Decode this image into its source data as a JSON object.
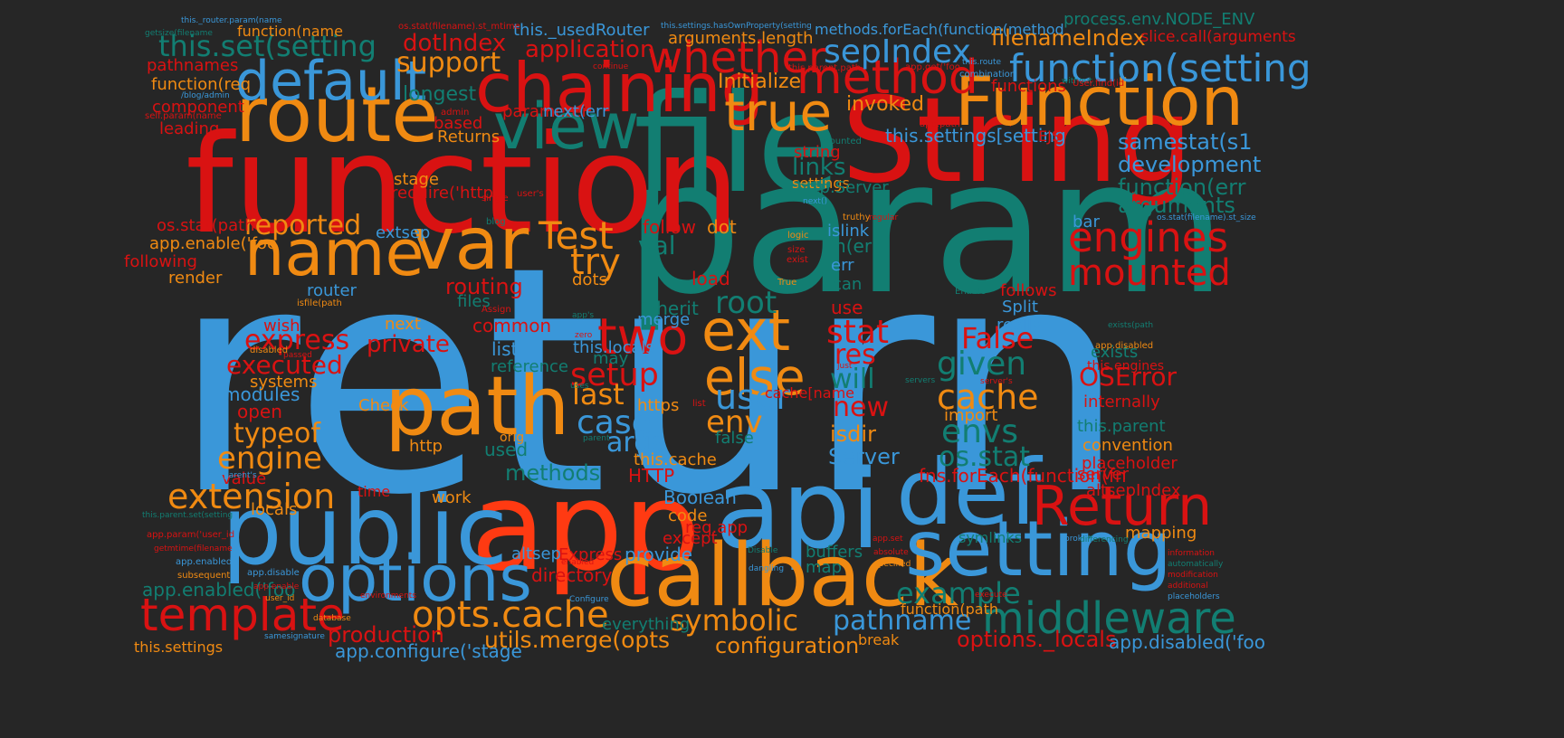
{
  "palette": {
    "background": "#262626",
    "blue": "#3a97d9",
    "orange": "#f08a12",
    "red": "#d91212",
    "vermilion": "#ff3a12",
    "teal": "#127e72"
  },
  "words": [
    {
      "text": "return",
      "color": "blue"
    },
    {
      "text": "param",
      "color": "teal"
    },
    {
      "text": "function",
      "color": "red"
    },
    {
      "text": "file",
      "color": "teal"
    },
    {
      "text": "String",
      "color": "red"
    },
    {
      "text": "app",
      "color": "vermilion"
    },
    {
      "text": "api",
      "color": "blue"
    },
    {
      "text": "public",
      "color": "blue"
    },
    {
      "text": "route",
      "color": "orange"
    },
    {
      "text": "def",
      "color": "blue"
    },
    {
      "text": "callback",
      "color": "orange"
    },
    {
      "text": "setting",
      "color": "blue"
    },
    {
      "text": "chaining",
      "color": "red"
    },
    {
      "text": "view",
      "color": "teal"
    },
    {
      "text": "var",
      "color": "orange"
    },
    {
      "text": "name",
      "color": "orange"
    },
    {
      "text": "path",
      "color": "orange"
    },
    {
      "text": "Function",
      "color": "orange"
    },
    {
      "text": "options",
      "color": "blue"
    },
    {
      "text": "default",
      "color": "blue"
    },
    {
      "text": "Return",
      "color": "red"
    },
    {
      "text": "template",
      "color": "red"
    },
    {
      "text": "middleware",
      "color": "teal"
    },
    {
      "text": "function(setting",
      "color": "blue"
    },
    {
      "text": "method",
      "color": "red"
    },
    {
      "text": "true",
      "color": "orange"
    },
    {
      "text": "ext",
      "color": "orange"
    },
    {
      "text": "whether",
      "color": "red"
    },
    {
      "text": "engines",
      "color": "red"
    },
    {
      "text": "opts.cache",
      "color": "orange"
    },
    {
      "text": "two",
      "color": "red"
    },
    {
      "text": "mounted",
      "color": "red"
    },
    {
      "text": "else",
      "color": "orange"
    },
    {
      "text": "extension",
      "color": "orange"
    },
    {
      "text": "sepIndex",
      "color": "blue"
    },
    {
      "text": "Test",
      "color": "orange"
    },
    {
      "text": "try",
      "color": "orange"
    },
    {
      "text": "symbolic",
      "color": "orange"
    },
    {
      "text": "cache",
      "color": "orange"
    },
    {
      "text": "example",
      "color": "teal"
    },
    {
      "text": "pathname",
      "color": "blue"
    },
    {
      "text": "reported",
      "color": "orange"
    },
    {
      "text": "setup",
      "color": "red"
    },
    {
      "text": "case",
      "color": "blue"
    },
    {
      "text": "user",
      "color": "blue"
    },
    {
      "text": "given",
      "color": "teal"
    },
    {
      "text": "envs",
      "color": "teal"
    },
    {
      "text": "root",
      "color": "teal"
    },
    {
      "text": "env",
      "color": "orange"
    },
    {
      "text": "val",
      "color": "teal"
    },
    {
      "text": "engine",
      "color": "orange"
    },
    {
      "text": "this.set(setting",
      "color": "teal"
    },
    {
      "text": "support",
      "color": "orange"
    },
    {
      "text": "dotIndex",
      "color": "red"
    },
    {
      "text": "application",
      "color": "red"
    },
    {
      "text": "filenameIndex",
      "color": "orange"
    },
    {
      "text": "utils.merge(opts",
      "color": "orange"
    },
    {
      "text": "configuration",
      "color": "orange"
    },
    {
      "text": "production",
      "color": "red"
    },
    {
      "text": "options._locals",
      "color": "red"
    },
    {
      "text": "app.configure('stage",
      "color": "blue"
    },
    {
      "text": "app.disabled('foo",
      "color": "blue"
    },
    {
      "text": "typeof",
      "color": "orange"
    },
    {
      "text": "last",
      "color": "orange"
    },
    {
      "text": "args",
      "color": "blue"
    },
    {
      "text": "executed",
      "color": "red"
    },
    {
      "text": "express",
      "color": "red"
    },
    {
      "text": "private",
      "color": "red"
    },
    {
      "text": "stat",
      "color": "red"
    },
    {
      "text": "res",
      "color": "red"
    },
    {
      "text": "will",
      "color": "teal"
    },
    {
      "text": "new",
      "color": "red"
    },
    {
      "text": "False",
      "color": "red"
    },
    {
      "text": "OSError",
      "color": "red"
    },
    {
      "text": "os.stat",
      "color": "teal"
    },
    {
      "text": "Server",
      "color": "blue"
    },
    {
      "text": "isdir",
      "color": "orange"
    },
    {
      "text": "samestat(s1",
      "color": "blue"
    },
    {
      "text": "development",
      "color": "blue"
    },
    {
      "text": "function(err",
      "color": "teal"
    },
    {
      "text": "arguments",
      "color": "teal"
    },
    {
      "text": "links",
      "color": "teal"
    },
    {
      "text": "settings",
      "color": "orange"
    },
    {
      "text": "invoked",
      "color": "orange"
    },
    {
      "text": "Initialize",
      "color": "orange"
    },
    {
      "text": "this.settings[setting",
      "color": "blue"
    },
    {
      "text": "this._usedRouter",
      "color": "blue"
    },
    {
      "text": "arguments.length",
      "color": "orange"
    },
    {
      "text": ".slice.call(arguments",
      "color": "red"
    },
    {
      "text": "methods.forEach(function(method",
      "color": "blue"
    },
    {
      "text": "process.env.NODE_ENV",
      "color": "teal"
    },
    {
      "text": "function(name",
      "color": "orange"
    },
    {
      "text": "pathnames",
      "color": "red"
    },
    {
      "text": "function(req",
      "color": "orange"
    },
    {
      "text": "component",
      "color": "red"
    },
    {
      "text": "leading",
      "color": "red"
    },
    {
      "text": "longest",
      "color": "teal"
    },
    {
      "text": "parameter",
      "color": "red"
    },
    {
      "text": "next(err",
      "color": "blue"
    },
    {
      "text": "Returns",
      "color": "orange"
    },
    {
      "text": "based",
      "color": "red"
    },
    {
      "text": "stage",
      "color": "orange"
    },
    {
      "text": "require('http",
      "color": "red"
    },
    {
      "text": "os.stat(path",
      "color": "red"
    },
    {
      "text": "app.enable('foo",
      "color": "orange"
    },
    {
      "text": "following",
      "color": "red"
    },
    {
      "text": "render",
      "color": "orange"
    },
    {
      "text": "extsep",
      "color": "blue"
    },
    {
      "text": "router",
      "color": "blue"
    },
    {
      "text": "routing",
      "color": "red"
    },
    {
      "text": "files",
      "color": "teal"
    },
    {
      "text": "dots",
      "color": "orange"
    },
    {
      "text": "follow",
      "color": "red"
    },
    {
      "text": "dot",
      "color": "orange"
    },
    {
      "text": "load",
      "color": "red"
    },
    {
      "text": "inherit",
      "color": "teal"
    },
    {
      "text": "merge",
      "color": "blue"
    },
    {
      "text": "common",
      "color": "red"
    },
    {
      "text": "wish",
      "color": "red"
    },
    {
      "text": "next",
      "color": "orange"
    },
    {
      "text": "list",
      "color": "blue"
    },
    {
      "text": "this.locals",
      "color": "blue"
    },
    {
      "text": "may",
      "color": "teal"
    },
    {
      "text": "reference",
      "color": "teal"
    },
    {
      "text": "modules",
      "color": "blue"
    },
    {
      "text": "systems",
      "color": "orange"
    },
    {
      "text": "open",
      "color": "red"
    },
    {
      "text": "Check",
      "color": "orange"
    },
    {
      "text": "http",
      "color": "orange"
    },
    {
      "text": "used",
      "color": "teal"
    },
    {
      "text": "orig",
      "color": "orange"
    },
    {
      "text": "https",
      "color": "orange"
    },
    {
      "text": "false",
      "color": "teal"
    },
    {
      "text": "methods",
      "color": "teal"
    },
    {
      "text": "value",
      "color": "red"
    },
    {
      "text": "HTTP",
      "color": "red"
    },
    {
      "text": "this.cache",
      "color": "orange"
    },
    {
      "text": "time",
      "color": "red"
    },
    {
      "text": "work",
      "color": "orange"
    },
    {
      "text": "locals",
      "color": "orange"
    },
    {
      "text": "Boolean",
      "color": "blue"
    },
    {
      "text": "code",
      "color": "orange"
    },
    {
      "text": "req.app",
      "color": "red"
    },
    {
      "text": "except",
      "color": "red"
    },
    {
      "text": "provide",
      "color": "blue"
    },
    {
      "text": "altsep",
      "color": "blue"
    },
    {
      "text": "Express",
      "color": "red"
    },
    {
      "text": "directory",
      "color": "red"
    },
    {
      "text": "everything",
      "color": "teal"
    },
    {
      "text": "app.enabled('foo",
      "color": "teal"
    },
    {
      "text": "this.settings",
      "color": "orange"
    },
    {
      "text": "import",
      "color": "orange"
    },
    {
      "text": "internally",
      "color": "red"
    },
    {
      "text": "this.engines",
      "color": "red"
    },
    {
      "text": "this.parent",
      "color": "teal"
    },
    {
      "text": "convention",
      "color": "orange"
    },
    {
      "text": "placeholder",
      "color": "red"
    },
    {
      "text": "server",
      "color": "red"
    },
    {
      "text": "fns.forEach(function(fn",
      "color": "red"
    },
    {
      "text": "altsepIndex",
      "color": "red"
    },
    {
      "text": "mapping",
      "color": "orange"
    },
    {
      "text": "exists",
      "color": "teal"
    },
    {
      "text": "really",
      "color": "blue"
    },
    {
      "text": "Split",
      "color": "blue"
    },
    {
      "text": "follows",
      "color": "red"
    },
    {
      "text": "buffers",
      "color": "teal"
    },
    {
      "text": "map",
      "color": "teal"
    },
    {
      "text": "symlinks",
      "color": "teal"
    },
    {
      "text": "function(path",
      "color": "orange"
    },
    {
      "text": "break",
      "color": "orange"
    },
    {
      "text": "use",
      "color": "red"
    },
    {
      "text": "can",
      "color": "teal"
    },
    {
      "text": "err",
      "color": "blue"
    },
    {
      "text": "fn(err",
      "color": "teal"
    },
    {
      "text": "islink",
      "color": "blue"
    },
    {
      "text": "string",
      "color": "red"
    },
    {
      "text": "http.Server",
      "color": "teal"
    },
    {
      "text": "functions",
      "color": "red"
    },
    {
      "text": "bar",
      "color": "blue"
    },
    {
      "text": "cache[name",
      "color": "red"
    },
    {
      "text": "EJS",
      "color": "red"
    },
    {
      "text": "this._router.param(name",
      "color": "blue"
    },
    {
      "text": "getsize(filename",
      "color": "teal"
    },
    {
      "text": "/blog/admin",
      "color": "blue"
    },
    {
      "text": "self.param(name",
      "color": "red"
    },
    {
      "text": "admin",
      "color": "red"
    },
    {
      "text": "user's",
      "color": "red"
    },
    {
      "text": "single",
      "color": "red"
    },
    {
      "text": "blog",
      "color": "teal"
    },
    {
      "text": "os.stat(filename).st_mtime",
      "color": "red"
    },
    {
      "text": "continue",
      "color": "red"
    },
    {
      "text": "this.settings.hasOwnProperty(setting",
      "color": "blue"
    },
    {
      "text": "this.parent.path",
      "color": "red"
    },
    {
      "text": "app.get('foo",
      "color": "red"
    },
    {
      "text": "this.route",
      "color": "blue"
    },
    {
      "text": "combination",
      "color": "blue"
    },
    {
      "text": "without",
      "color": "teal"
    },
    {
      "text": "User.find(id",
      "color": "red"
    },
    {
      "text": "app.path",
      "color": "red"
    },
    {
      "text": "Mounted",
      "color": "teal"
    },
    {
      "text": "next()",
      "color": "blue"
    },
    {
      "text": "truthy",
      "color": "orange"
    },
    {
      "text": "regular",
      "color": "red"
    },
    {
      "text": "logic",
      "color": "orange"
    },
    {
      "text": "size",
      "color": "red"
    },
    {
      "text": "exist",
      "color": "red"
    },
    {
      "text": "True",
      "color": "orange"
    },
    {
      "text": "Enable",
      "color": "teal"
    },
    {
      "text": "os.stat(filename).st_size",
      "color": "blue"
    },
    {
      "text": "isfile(path",
      "color": "orange"
    },
    {
      "text": "Assign",
      "color": "red"
    },
    {
      "text": "app's",
      "color": "teal"
    },
    {
      "text": "zero",
      "color": "red"
    },
    {
      "text": "disabled",
      "color": "orange"
    },
    {
      "text": "passed",
      "color": "red"
    },
    {
      "text": "uses",
      "color": "teal"
    },
    {
      "text": "just",
      "color": "red"
    },
    {
      "text": "servers",
      "color": "teal"
    },
    {
      "text": "server's",
      "color": "red"
    },
    {
      "text": "exists(path",
      "color": "teal"
    },
    {
      "text": "app.disabled",
      "color": "orange"
    },
    {
      "text": "parent's",
      "color": "blue"
    },
    {
      "text": "parent",
      "color": "teal"
    },
    {
      "text": "list",
      "color": "red"
    },
    {
      "text": "this.parent.set(setting",
      "color": "teal"
    },
    {
      "text": "app.param('user_id",
      "color": "red"
    },
    {
      "text": "getmtime(filename",
      "color": "red"
    },
    {
      "text": "app.enabled",
      "color": "blue"
    },
    {
      "text": "subsequent",
      "color": "orange"
    },
    {
      "text": "app.disable",
      "color": "blue"
    },
    {
      "text": "app.enable",
      "color": "red"
    },
    {
      "text": "user_id",
      "color": "orange"
    },
    {
      "text": "environments",
      "color": "red"
    },
    {
      "text": "database",
      "color": "orange"
    },
    {
      "text": "samesignature",
      "color": "blue"
    },
    {
      "text": "enabled",
      "color": "red"
    },
    {
      "text": "Disable",
      "color": "teal"
    },
    {
      "text": "Configure",
      "color": "blue"
    },
    {
      "text": "dangling",
      "color": "blue"
    },
    {
      "text": "app.set",
      "color": "red"
    },
    {
      "text": "absolute",
      "color": "red"
    },
    {
      "text": "specified",
      "color": "orange"
    },
    {
      "text": "broken",
      "color": "blue"
    },
    {
      "text": "execute",
      "color": "red"
    },
    {
      "text": "information",
      "color": "red"
    },
    {
      "text": "automatically",
      "color": "teal"
    },
    {
      "text": "modification",
      "color": "red"
    },
    {
      "text": "additional",
      "color": "red"
    },
    {
      "text": "placeholders",
      "color": "blue"
    },
    {
      "text": "differencing",
      "color": "teal"
    }
  ]
}
